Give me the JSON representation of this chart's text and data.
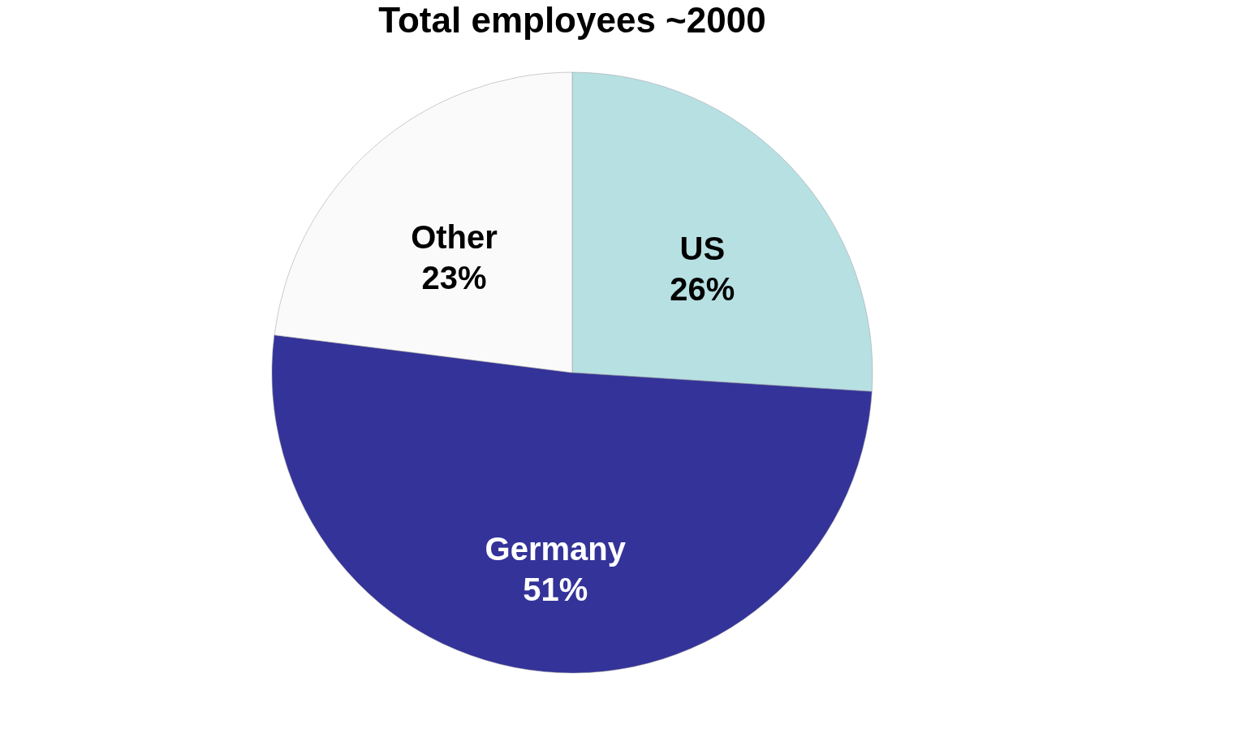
{
  "chart_data": {
    "type": "pie",
    "title": "Total employees ~2000",
    "categories": [
      "US",
      "Germany",
      "Other"
    ],
    "values": [
      26,
      51,
      23
    ],
    "value_labels": [
      "26%",
      "51%",
      "23%"
    ],
    "colors": [
      "#b7e0e3",
      "#333399",
      "#fafafa"
    ]
  }
}
